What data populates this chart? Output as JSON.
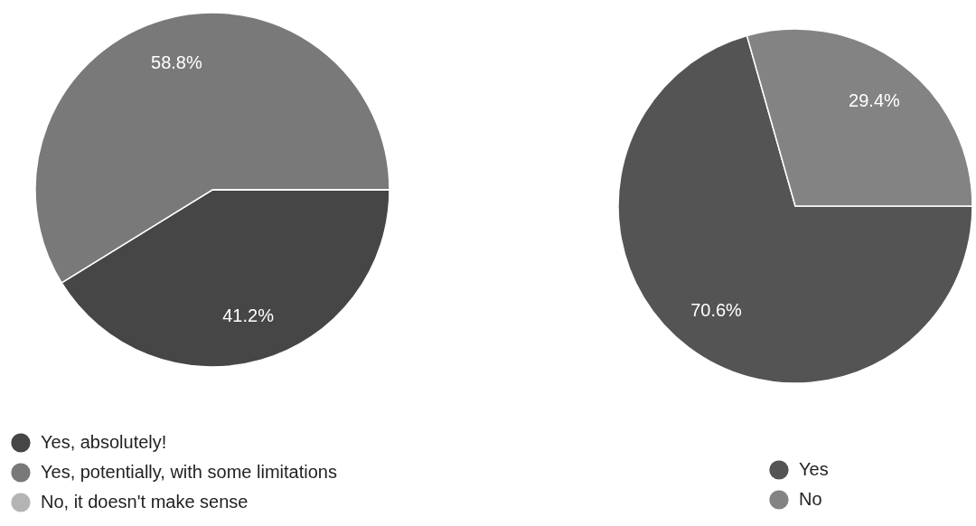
{
  "chart_data": [
    {
      "type": "pie",
      "categories": [
        "Yes, absolutely!",
        "Yes, potentially, with some limitations",
        "No, it doesn't make sense"
      ],
      "values": [
        41.2,
        58.8,
        0
      ],
      "colors": [
        "#464646",
        "#797979",
        "#b4b4b4"
      ],
      "value_labels": [
        "41.2%",
        "58.8%",
        null
      ],
      "legend": "bottom left"
    },
    {
      "type": "pie",
      "categories": [
        "Yes",
        "No"
      ],
      "values": [
        70.6,
        29.4
      ],
      "colors": [
        "#545454",
        "#838383"
      ],
      "value_labels": [
        "70.6%",
        "29.4%"
      ],
      "legend": "bottom"
    }
  ]
}
